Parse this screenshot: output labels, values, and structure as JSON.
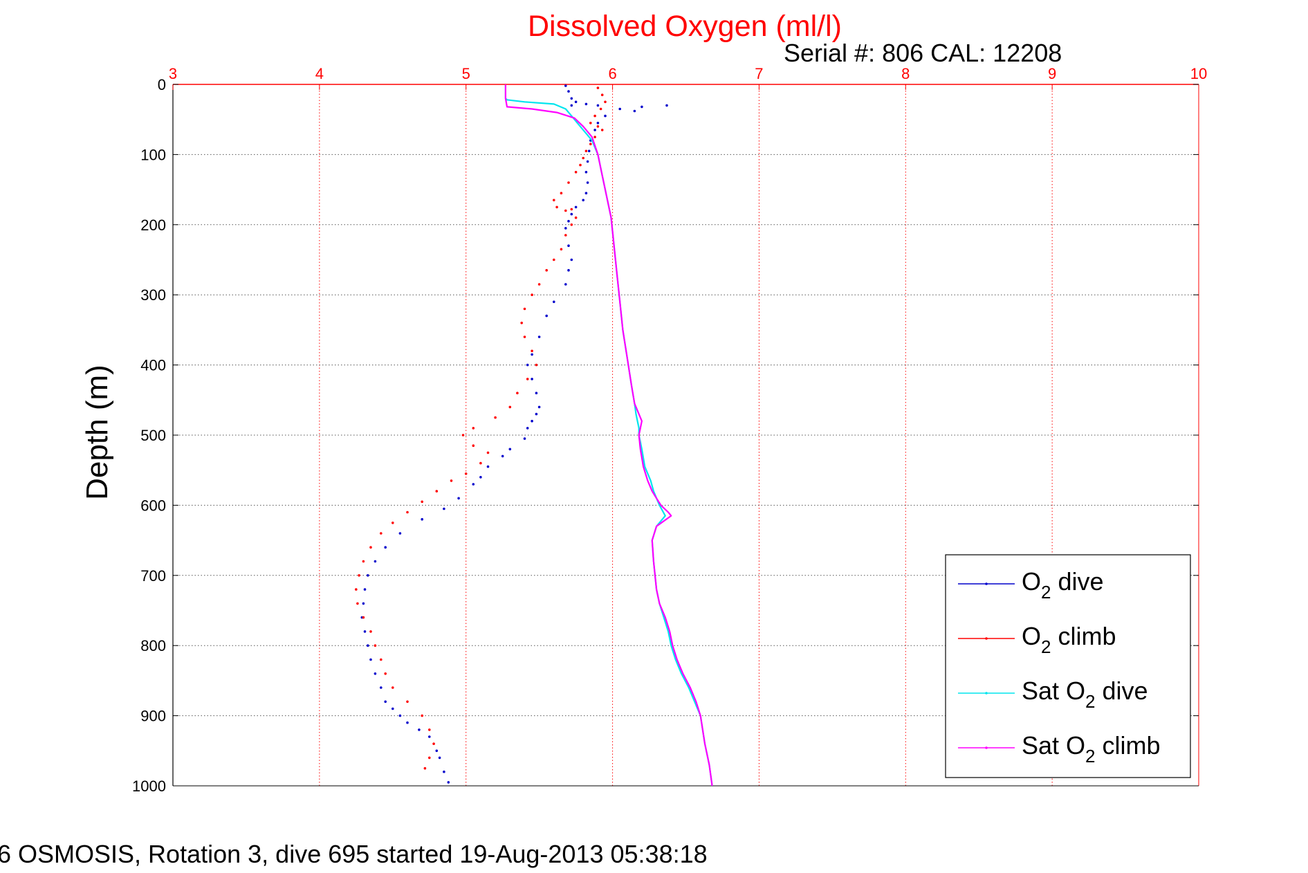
{
  "chart_data": {
    "type": "scatter",
    "title": "Dissolved Oxygen (ml/l)",
    "subtitle": "Serial #: 806  CAL: 12208",
    "footer": "6 OSMOSIS, Rotation 3, dive 695 started 19-Aug-2013 05:38:18",
    "ylabel": "Depth (m)",
    "xlabel": "",
    "xlim": [
      3,
      10
    ],
    "ylim": [
      0,
      1000
    ],
    "y_reversed": true,
    "x_axis_position": "top",
    "x_ticks": [
      "3",
      "4",
      "5",
      "6",
      "7",
      "8",
      "9",
      "10"
    ],
    "y_ticks": [
      "0",
      "100",
      "200",
      "300",
      "400",
      "500",
      "600",
      "700",
      "800",
      "900",
      "1000"
    ],
    "grid": true,
    "legend_position": "bottom-right",
    "colors": {
      "axis_red": "#ff0000",
      "dive": "#0000cc",
      "climb": "#ff0000",
      "sat_dive": "#00e5ee",
      "sat_climb": "#ff00ff",
      "grid": "#555555"
    },
    "series": [
      {
        "name": "O2 dive",
        "legend_main": "O",
        "legend_sub": "2",
        "legend_rest": " dive",
        "style": "dots",
        "color": "#0000cc",
        "x": [
          5.68,
          5.7,
          5.72,
          5.75,
          5.82,
          5.9,
          6.05,
          6.2,
          6.37,
          6.15,
          5.95,
          5.9,
          5.88,
          5.85,
          5.84,
          5.83,
          5.82,
          5.83,
          5.82,
          5.8,
          5.75,
          5.72,
          5.7,
          5.68,
          5.7,
          5.72,
          5.7,
          5.68,
          5.72,
          5.6,
          5.55,
          5.5,
          5.45,
          5.42,
          5.45,
          5.48,
          5.5,
          5.48,
          5.45,
          5.42,
          5.4,
          5.3,
          5.25,
          5.15,
          5.1,
          5.05,
          4.95,
          4.85,
          4.7,
          4.55,
          4.45,
          4.38,
          4.33,
          4.31,
          4.3,
          4.29,
          4.31,
          4.33,
          4.35,
          4.38,
          4.42,
          4.45,
          4.5,
          4.55,
          4.6,
          4.68,
          4.75,
          4.8,
          4.82,
          4.85,
          4.88
        ],
        "y": [
          2,
          10,
          20,
          25,
          28,
          30,
          35,
          32,
          30,
          38,
          45,
          55,
          65,
          80,
          95,
          110,
          125,
          140,
          155,
          165,
          175,
          185,
          195,
          205,
          230,
          250,
          265,
          285,
          30,
          310,
          330,
          360,
          385,
          400,
          420,
          440,
          460,
          470,
          480,
          490,
          505,
          520,
          530,
          545,
          560,
          570,
          590,
          605,
          620,
          640,
          660,
          680,
          700,
          720,
          740,
          760,
          780,
          800,
          820,
          840,
          860,
          880,
          890,
          900,
          910,
          920,
          930,
          950,
          960,
          980,
          995
        ]
      },
      {
        "name": "O2 climb",
        "legend_main": "O",
        "legend_sub": "2",
        "legend_rest": " climb",
        "style": "dots",
        "color": "#ff0000",
        "x": [
          5.9,
          5.93,
          5.95,
          5.92,
          5.88,
          5.85,
          5.9,
          5.93,
          5.88,
          5.85,
          5.82,
          5.8,
          5.78,
          5.75,
          5.7,
          5.65,
          5.6,
          5.62,
          5.68,
          5.72,
          5.75,
          5.72,
          5.68,
          5.65,
          5.6,
          5.55,
          5.5,
          5.45,
          5.4,
          5.38,
          5.4,
          5.45,
          5.48,
          5.42,
          5.35,
          5.3,
          5.2,
          5.05,
          4.98,
          5.05,
          5.15,
          5.1,
          5.0,
          4.9,
          4.8,
          4.7,
          4.6,
          4.5,
          4.42,
          4.35,
          4.3,
          4.27,
          4.25,
          4.26,
          4.3,
          4.35,
          4.38,
          4.42,
          4.45,
          4.5,
          4.6,
          4.7,
          4.75,
          4.78,
          4.75,
          4.72
        ],
        "y": [
          5,
          15,
          25,
          35,
          45,
          55,
          60,
          65,
          75,
          85,
          95,
          105,
          115,
          125,
          140,
          155,
          165,
          175,
          180,
          178,
          190,
          200,
          215,
          235,
          250,
          265,
          285,
          300,
          320,
          340,
          360,
          380,
          400,
          420,
          440,
          460,
          475,
          490,
          500,
          515,
          525,
          540,
          555,
          565,
          580,
          595,
          610,
          625,
          640,
          660,
          680,
          700,
          720,
          740,
          760,
          780,
          800,
          820,
          840,
          860,
          880,
          900,
          920,
          940,
          960,
          975
        ]
      },
      {
        "name": "Sat O2 dive",
        "legend_main": "Sat O",
        "legend_sub": "2",
        "legend_rest": " dive",
        "style": "line",
        "color": "#00e5ee",
        "x": [
          5.27,
          5.27,
          5.28,
          5.4,
          5.6,
          5.68,
          5.72,
          5.76,
          5.8,
          5.86,
          5.9,
          5.93,
          5.96,
          5.99,
          6.01,
          6.03,
          6.05,
          6.07,
          6.1,
          6.13,
          6.15,
          6.16,
          6.18,
          6.18,
          6.2,
          6.22,
          6.26,
          6.28,
          6.32,
          6.36,
          6.3,
          6.27,
          6.28,
          6.29,
          6.3,
          6.32,
          6.35,
          6.38,
          6.4,
          6.43,
          6.47,
          6.52,
          6.56,
          6.6,
          6.63,
          6.66,
          6.68
        ],
        "y": [
          0,
          20,
          22,
          25,
          28,
          35,
          45,
          55,
          65,
          80,
          100,
          130,
          160,
          190,
          230,
          270,
          310,
          350,
          390,
          430,
          455,
          470,
          490,
          500,
          520,
          545,
          565,
          580,
          600,
          615,
          630,
          650,
          680,
          700,
          720,
          740,
          760,
          780,
          800,
          820,
          840,
          860,
          880,
          900,
          940,
          970,
          1000
        ]
      },
      {
        "name": "Sat O2 climb",
        "legend_main": "Sat O",
        "legend_sub": "2",
        "legend_rest": " climb",
        "style": "line",
        "color": "#ff00ff",
        "x": [
          5.27,
          5.27,
          5.28,
          5.45,
          5.62,
          5.74,
          5.8,
          5.86,
          5.9,
          5.93,
          5.96,
          5.99,
          6.01,
          6.03,
          6.05,
          6.07,
          6.1,
          6.13,
          6.15,
          6.2,
          6.18,
          6.19,
          6.21,
          6.24,
          6.27,
          6.3,
          6.33,
          6.38,
          6.4,
          6.3,
          6.27,
          6.28,
          6.29,
          6.3,
          6.32,
          6.36,
          6.39,
          6.41,
          6.44,
          6.48,
          6.53,
          6.57,
          6.6,
          6.63,
          6.66,
          6.68
        ],
        "y": [
          0,
          20,
          32,
          35,
          40,
          48,
          60,
          75,
          100,
          130,
          160,
          190,
          230,
          270,
          310,
          350,
          390,
          430,
          455,
          480,
          500,
          520,
          545,
          565,
          580,
          590,
          600,
          610,
          615,
          630,
          650,
          680,
          700,
          720,
          740,
          760,
          780,
          800,
          820,
          840,
          860,
          880,
          900,
          940,
          970,
          1000
        ]
      }
    ]
  }
}
